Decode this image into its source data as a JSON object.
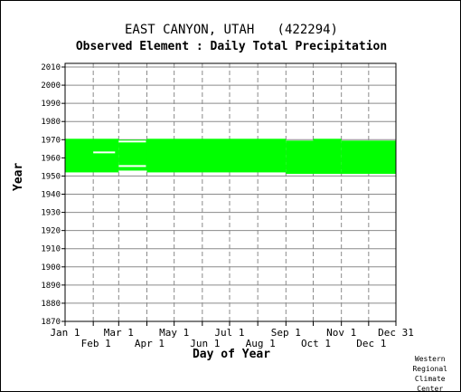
{
  "title": "EAST CANYON, UTAH   (422294)",
  "subtitle": "Observed Element : Daily Total Precipitation",
  "credit": [
    "Western",
    "Regional",
    "Climate",
    "Center"
  ],
  "chart_data": {
    "type": "area",
    "xlabel": "Day of Year",
    "ylabel": "Year",
    "xlim": [
      1,
      365
    ],
    "ylim": [
      1870,
      2012
    ],
    "yticks": [
      1870,
      1880,
      1890,
      1900,
      1910,
      1920,
      1930,
      1940,
      1950,
      1960,
      1970,
      1980,
      1990,
      2000,
      2010
    ],
    "xticks_top_row": [
      {
        "label": "Jan 1",
        "day": 1
      },
      {
        "label": "Mar 1",
        "day": 60
      },
      {
        "label": "May 1",
        "day": 121
      },
      {
        "label": "Jul 1",
        "day": 182
      },
      {
        "label": "Sep 1",
        "day": 244
      },
      {
        "label": "Nov 1",
        "day": 305
      },
      {
        "label": "Dec 31",
        "day": 365
      }
    ],
    "xticks_bottom_row": [
      {
        "label": "Feb 1",
        "day": 32
      },
      {
        "label": "Apr 1",
        "day": 91
      },
      {
        "label": "Jun 1",
        "day": 152
      },
      {
        "label": "Aug 1",
        "day": 213
      },
      {
        "label": "Oct 1",
        "day": 274
      },
      {
        "label": "Dec 1",
        "day": 335
      }
    ],
    "grid": true,
    "fill_color": "#00ff00",
    "gap_color": "#ffffff",
    "series": [
      {
        "values": [
          {
            "day_start": 1,
            "day_end": 59,
            "year_start": 1952,
            "year_end": 1970.5
          },
          {
            "day_start": 60,
            "day_end": 90,
            "year_start": 1953,
            "year_end": 1970
          },
          {
            "day_start": 91,
            "day_end": 243,
            "year_start": 1952,
            "year_end": 1970.5
          },
          {
            "day_start": 244,
            "day_end": 273,
            "year_start": 1951.2,
            "year_end": 1969.5
          },
          {
            "day_start": 274,
            "day_end": 304,
            "year_start": 1951.2,
            "year_end": 1970.5
          },
          {
            "day_start": 305,
            "day_end": 365,
            "year_start": 1951.2,
            "year_end": 1969.5
          }
        ]
      }
    ],
    "gaps": [
      {
        "day_start": 32,
        "day_end": 56,
        "year": 1963
      },
      {
        "day_start": 60,
        "day_end": 90,
        "year": 1969
      },
      {
        "day_start": 60,
        "day_end": 90,
        "year": 1955.5
      }
    ]
  }
}
